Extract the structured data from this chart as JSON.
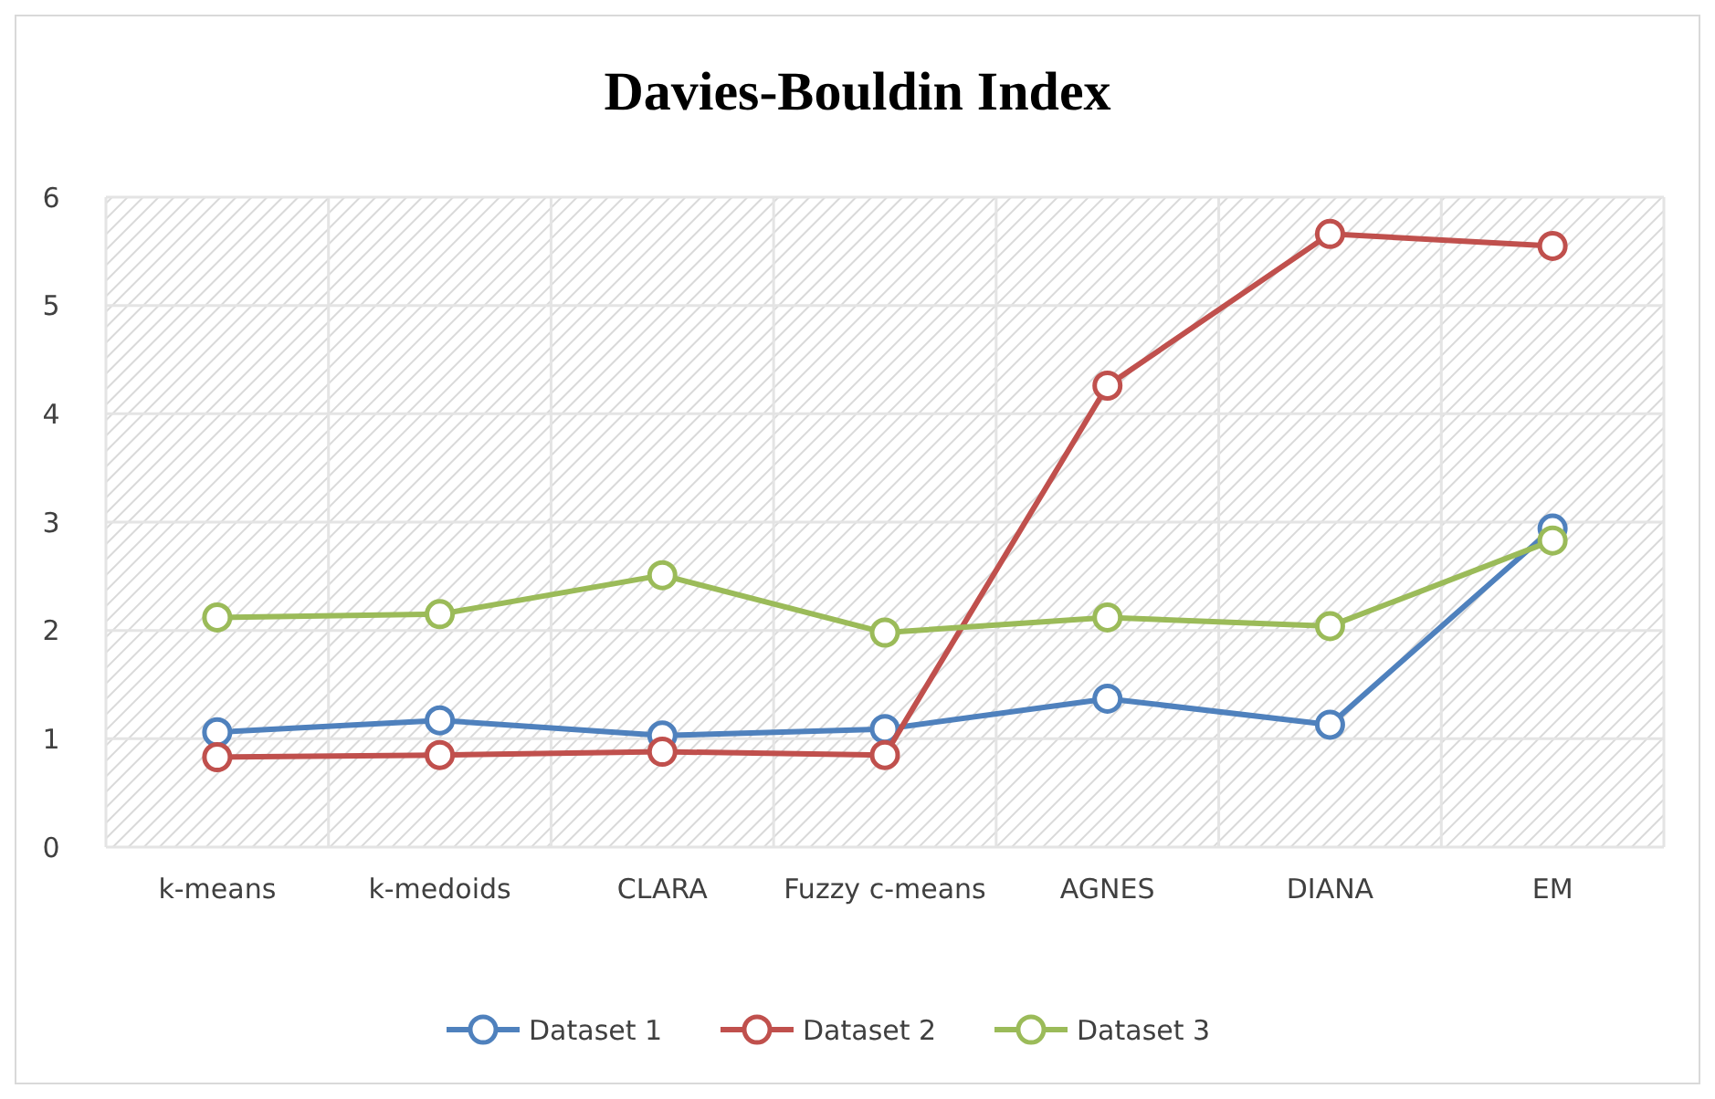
{
  "chart_data": {
    "type": "line",
    "title": "Davies-Bouldin Index",
    "categories": [
      "k-means",
      "k-medoids",
      "CLARA",
      "Fuzzy c-means",
      "AGNES",
      "DIANA",
      "EM"
    ],
    "series": [
      {
        "name": "Dataset 1",
        "color": "#4f81bd",
        "values": [
          1.06,
          1.17,
          1.03,
          1.09,
          1.37,
          1.13,
          2.94
        ]
      },
      {
        "name": "Dataset 2",
        "color": "#c0504d",
        "values": [
          0.83,
          0.85,
          0.88,
          0.85,
          4.26,
          5.66,
          5.55
        ]
      },
      {
        "name": "Dataset 3",
        "color": "#9bbb59",
        "values": [
          2.12,
          2.15,
          2.51,
          1.98,
          2.12,
          2.04,
          2.83
        ]
      }
    ],
    "ylim": [
      0,
      6
    ],
    "yticks": [
      0,
      1,
      2,
      3,
      4,
      5,
      6
    ],
    "grid": true,
    "legend": "bottom",
    "marker": "circle",
    "line_style": "solid"
  }
}
